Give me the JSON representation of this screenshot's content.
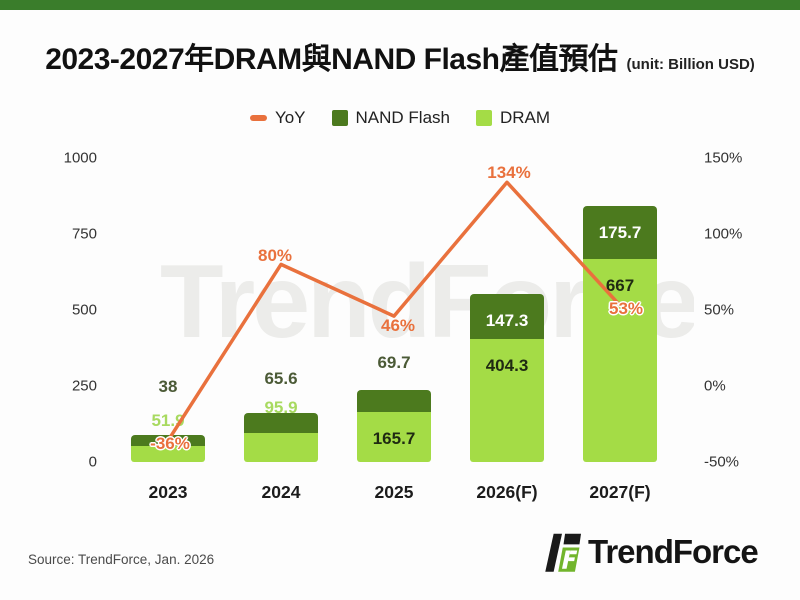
{
  "title": {
    "main": "2023-2027年DRAM與NAND Flash產值預估",
    "unit": "(unit: Billion USD)"
  },
  "legend": [
    {
      "label": "YoY",
      "color": "#e9713d",
      "marker": "dash"
    },
    {
      "label": "NAND Flash",
      "color": "#4c7a1e",
      "marker": "square"
    },
    {
      "label": "DRAM",
      "color": "#a4dc46",
      "marker": "square"
    }
  ],
  "chart_data": {
    "type": "bar",
    "subtype": "stacked-bar-with-line",
    "title": "2023-2027年DRAM與NAND Flash產值預估",
    "unit_note": "(unit: Billion USD)",
    "categories": [
      "2023",
      "2024",
      "2025",
      "2026(F)",
      "2027(F)"
    ],
    "series": [
      {
        "name": "DRAM",
        "type": "bar",
        "stack": true,
        "color": "#a4dc46",
        "values": [
          51.9,
          95.9,
          165.7,
          404.3,
          667
        ],
        "labels": [
          "51.9",
          "95.9",
          "165.7",
          "404.3",
          "667"
        ]
      },
      {
        "name": "NAND Flash",
        "type": "bar",
        "stack": true,
        "color": "#4c7a1e",
        "values": [
          38,
          65.6,
          69.7,
          147.3,
          175.7
        ],
        "labels": [
          "38",
          "65.6",
          "69.7",
          "147.3",
          "175.7"
        ]
      },
      {
        "name": "YoY",
        "type": "line",
        "axis": "right",
        "color": "#e9713d",
        "values": [
          -36,
          80,
          46,
          134,
          53
        ],
        "labels": [
          "-36%",
          "80%",
          "46%",
          "134%",
          "53%"
        ]
      }
    ],
    "left_axis": {
      "ticks": [
        "0",
        "250",
        "500",
        "750",
        "1000"
      ],
      "min": 0,
      "max": 1000
    },
    "right_axis": {
      "ticks": [
        "-50%",
        "0%",
        "50%",
        "100%",
        "150%"
      ],
      "min": -50,
      "max": 150
    },
    "grid": false,
    "legend_position": "top"
  },
  "colors": {
    "top_band": "#3a7d2b",
    "background": "#fdfdfd",
    "nand_outside_label": "#4b5a36",
    "dram_outside_label": "#a8da60",
    "logo_green": "#72b52c"
  },
  "watermark": {
    "text": "TrendForce"
  },
  "footer": {
    "source": "Source: TrendForce, Jan. 2026",
    "logo_text": "TrendForce"
  }
}
